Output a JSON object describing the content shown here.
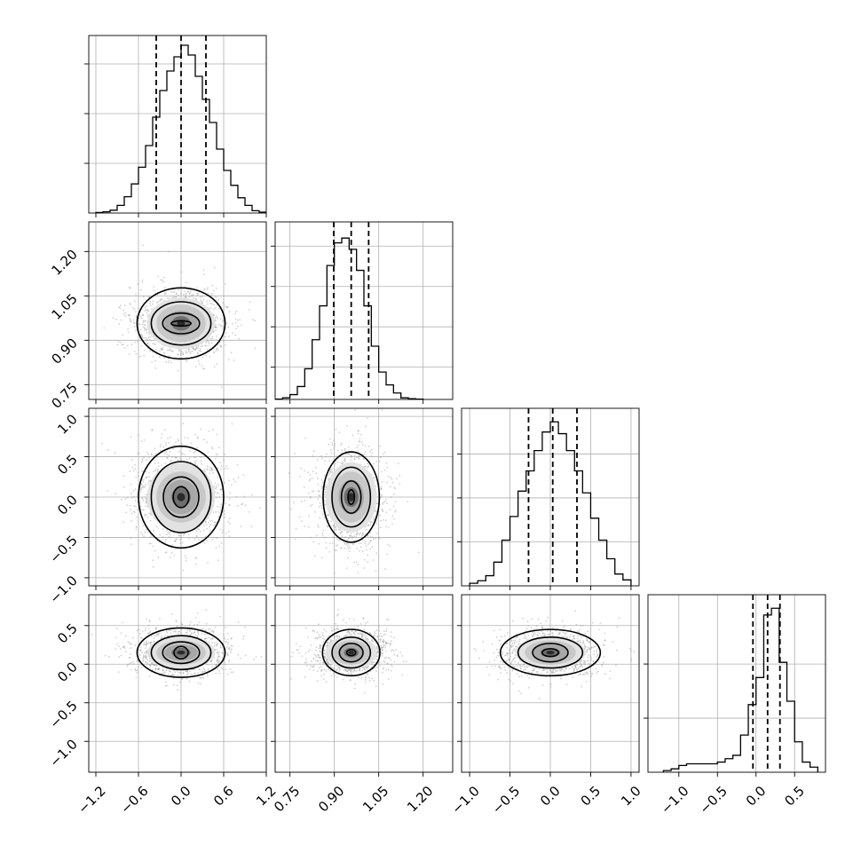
{
  "chart_data": {
    "type": "corner",
    "grid": true,
    "colors": {
      "points": "#9a9a9a",
      "lines": "#000000",
      "grid": "#b0b0b0"
    },
    "parameters": [
      {
        "ticks": [
          -1.2,
          -0.6,
          0.0,
          0.6,
          1.2
        ],
        "tick_labels": [
          "−1.2",
          "−0.6",
          "0.0",
          "0.6",
          "1.2"
        ],
        "range": [
          -1.3,
          1.2
        ]
      },
      {
        "ticks": [
          0.75,
          0.9,
          1.05,
          1.2
        ],
        "tick_labels": [
          "0.75",
          "0.90",
          "1.05",
          "1.20"
        ],
        "range": [
          0.7,
          1.3
        ]
      },
      {
        "ticks": [
          -1.0,
          -0.5,
          0.0,
          0.5,
          1.0
        ],
        "tick_labels": [
          "−1.0",
          "−0.5",
          "0.0",
          "0.5",
          "1.0"
        ],
        "range": [
          -1.1,
          1.1
        ]
      },
      {
        "ticks": [
          -1.0,
          -0.5,
          0.0,
          0.5
        ],
        "tick_labels": [
          "−1.0",
          "−0.5",
          "0.0",
          "0.5"
        ],
        "range": [
          -1.4,
          0.9
        ]
      }
    ],
    "histograms": [
      {
        "edges": [
          -1.2,
          -1.1,
          -1.0,
          -0.9,
          -0.8,
          -0.7,
          -0.6,
          -0.5,
          -0.4,
          -0.3,
          -0.2,
          -0.1,
          0.0,
          0.1,
          0.2,
          0.3,
          0.4,
          0.5,
          0.6,
          0.7,
          0.8,
          0.9,
          1.0,
          1.1,
          1.2
        ],
        "counts": [
          0.3,
          0.7,
          1.6,
          4.3,
          9.2,
          16.4,
          25.8,
          38.0,
          54.0,
          69.0,
          80.0,
          88.0,
          94.5,
          89.0,
          77.0,
          64.0,
          51.0,
          36.0,
          24.0,
          15.6,
          8.6,
          4.3,
          1.3,
          0.5
        ],
        "ylim": [
          0,
          100
        ],
        "ygrid": [
          28,
          56,
          84
        ],
        "quantiles": [
          -0.35,
          0.0,
          0.35
        ]
      },
      {
        "edges": [
          0.7,
          0.725,
          0.75,
          0.775,
          0.8,
          0.825,
          0.85,
          0.875,
          0.9,
          0.925,
          0.95,
          0.975,
          1.0,
          1.025,
          1.05,
          1.075,
          1.1,
          1.125,
          1.15,
          1.175,
          1.2
        ],
        "counts": [
          0.2,
          1.0,
          3.0,
          8.0,
          19.0,
          37.0,
          58.0,
          83.0,
          97.0,
          100.0,
          93.0,
          80.0,
          58.0,
          33.0,
          17.0,
          9.0,
          4.0,
          1.0,
          0.5,
          0.2
        ],
        "ylim": [
          0,
          110
        ],
        "ygrid": [
          20,
          45,
          70,
          95
        ],
        "quantiles": [
          0.898,
          0.957,
          1.016
        ]
      },
      {
        "edges": [
          -1.0,
          -0.9,
          -0.8,
          -0.7,
          -0.6,
          -0.5,
          -0.4,
          -0.3,
          -0.2,
          -0.1,
          0.0,
          0.1,
          0.2,
          0.3,
          0.4,
          0.5,
          0.6,
          0.7,
          0.8,
          0.9,
          1.0
        ],
        "counts": [
          1.5,
          3.0,
          6.0,
          14.0,
          27.0,
          41.0,
          56.0,
          68.0,
          80.0,
          91.0,
          97.0,
          90.0,
          80.0,
          68.0,
          55.0,
          40.0,
          27.0,
          16.0,
          7.0,
          3.5
        ],
        "ylim": [
          0,
          105
        ],
        "ygrid": [
          26,
          52,
          78
        ],
        "quantiles": [
          -0.27,
          0.03,
          0.33
        ]
      },
      {
        "edges": [
          -1.2,
          -1.1,
          -1.0,
          -0.9,
          -0.8,
          -0.7,
          -0.6,
          -0.5,
          -0.4,
          -0.3,
          -0.2,
          -0.1,
          0.0,
          0.1,
          0.2,
          0.3,
          0.4,
          0.5,
          0.6,
          0.7,
          0.8
        ],
        "counts": [
          1,
          2,
          4,
          5,
          5,
          5,
          5,
          6,
          8,
          10,
          22,
          40,
          56,
          93,
          97,
          65,
          42,
          18,
          6,
          3
        ],
        "ylim": [
          0,
          105
        ],
        "ygrid": [
          32,
          64
        ],
        "quantiles": [
          -0.04,
          0.15,
          0.31
        ]
      }
    ],
    "pairs": [
      {
        "row": 1,
        "col": 0,
        "mean": [
          0.0,
          0.957
        ],
        "sd": [
          0.33,
          0.06
        ],
        "contours": [
          [
            0.14,
            0.009
          ],
          [
            0.26,
            0.035
          ],
          [
            0.42,
            0.073
          ],
          [
            0.62,
            0.12
          ]
        ]
      },
      {
        "row": 2,
        "col": 0,
        "mean": [
          0.0,
          0.0
        ],
        "sd": [
          0.33,
          0.3
        ],
        "contours": [
          [
            0.11,
            0.13
          ],
          [
            0.25,
            0.25
          ],
          [
            0.42,
            0.44
          ],
          [
            0.6,
            0.63
          ]
        ]
      },
      {
        "row": 2,
        "col": 1,
        "mean": [
          0.957,
          0.0
        ],
        "sd": [
          0.06,
          0.3
        ],
        "contours": [
          [
            0.011,
            0.09
          ],
          [
            0.033,
            0.2
          ],
          [
            0.065,
            0.37
          ],
          [
            0.095,
            0.56
          ]
        ]
      },
      {
        "row": 3,
        "col": 0,
        "mean": [
          0.0,
          0.15
        ],
        "sd": [
          0.33,
          0.15
        ],
        "contours": [
          [
            0.1,
            0.08
          ],
          [
            0.26,
            0.14
          ],
          [
            0.42,
            0.22
          ],
          [
            0.62,
            0.32
          ]
        ]
      },
      {
        "row": 3,
        "col": 1,
        "mean": [
          0.957,
          0.15
        ],
        "sd": [
          0.06,
          0.15
        ],
        "contours": [
          [
            0.015,
            0.04
          ],
          [
            0.04,
            0.12
          ],
          [
            0.065,
            0.2
          ],
          [
            0.097,
            0.3
          ]
        ]
      },
      {
        "row": 3,
        "col": 2,
        "mean": [
          0.0,
          0.15
        ],
        "sd": [
          0.3,
          0.15
        ],
        "contours": [
          [
            0.1,
            0.05
          ],
          [
            0.22,
            0.12
          ],
          [
            0.4,
            0.2
          ],
          [
            0.62,
            0.3
          ]
        ]
      }
    ]
  }
}
